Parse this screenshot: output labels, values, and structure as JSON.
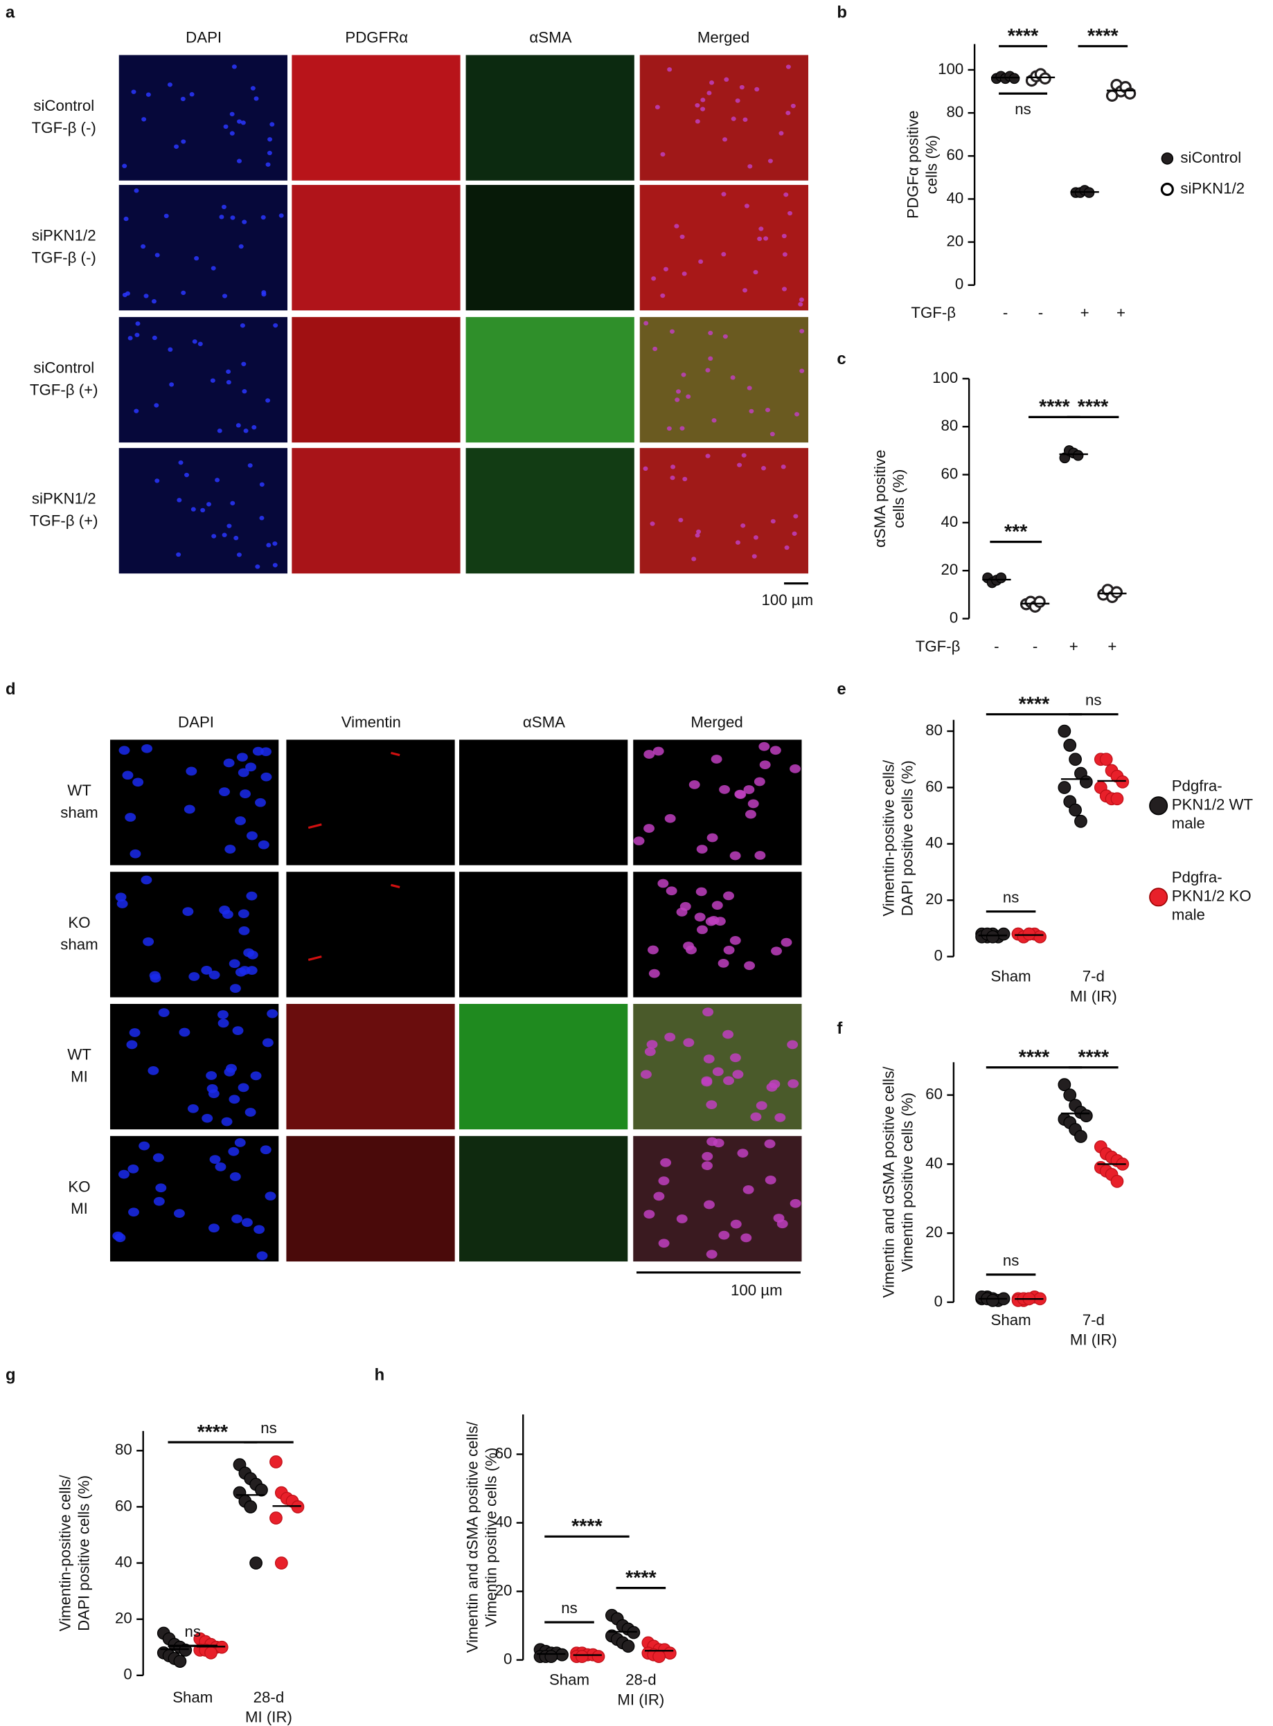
{
  "figure_panels": [
    {
      "letter": "a",
      "columns": [
        "DAPI",
        "PDGFRα",
        "αSMA",
        "Merged"
      ],
      "rows": [
        [
          "siControl",
          "TGF-β (-)"
        ],
        [
          "siPKN1/2",
          "TGF-β (-)"
        ],
        [
          "siControl",
          "TGF-β (+)"
        ],
        [
          "siPKN1/2",
          "TGF-β (+)"
        ]
      ],
      "scale_bar": "100 µm"
    },
    {
      "letter": "d",
      "columns": [
        "DAPI",
        "Vimentin",
        "αSMA",
        "Merged"
      ],
      "rows": [
        [
          "WT",
          "sham"
        ],
        [
          "KO",
          "sham"
        ],
        [
          "WT",
          "MI"
        ],
        [
          "KO",
          "MI"
        ]
      ],
      "scale_bar": "100 µm"
    }
  ],
  "chart_data": [
    {
      "type": "dot",
      "panel": "b",
      "ylabel": [
        "PDGFα positive",
        "cells (%)"
      ],
      "ylim": [
        0,
        112
      ],
      "yticks": [
        0,
        20,
        40,
        60,
        80,
        100
      ],
      "xlabel": "TGF-β",
      "categories": [
        "-",
        "-",
        "+",
        "+"
      ],
      "series": [
        {
          "name": [
            "siControl"
          ],
          "color": "#231f20",
          "hollow": false,
          "values": [
            [
              96,
              97,
              96,
              97,
              96
            ],
            null,
            [
              43,
              43,
              44,
              43
            ],
            null
          ]
        },
        {
          "name": [
            "siPKN1/2"
          ],
          "color": "#231f20",
          "hollow": true,
          "values": [
            null,
            [
              95,
              97,
              98,
              96
            ],
            null,
            [
              88,
              93,
              90,
              92,
              89
            ]
          ]
        }
      ],
      "annotations": [
        {
          "text": "****",
          "from": 0,
          "to": 1,
          "y": 111
        },
        {
          "text": "ns",
          "from": 0,
          "to": 1,
          "y": 89,
          "text_below": true
        },
        {
          "text": "****",
          "from": 2,
          "to": 3,
          "y": 111
        }
      ]
    },
    {
      "type": "dot",
      "panel": "c",
      "ylabel": [
        "αSMA positive",
        "cells (%)"
      ],
      "ylim": [
        0,
        100
      ],
      "yticks": [
        0,
        20,
        40,
        60,
        80,
        100
      ],
      "xlabel": "TGF-β",
      "categories": [
        "-",
        "-",
        "+",
        "+"
      ],
      "series": [
        {
          "name": [
            "siControl"
          ],
          "color": "#231f20",
          "hollow": false,
          "values": [
            [
              17,
              15,
              16,
              17
            ],
            null,
            [
              67,
              70,
              69,
              68
            ],
            null
          ]
        },
        {
          "name": [
            "siPKN1/2"
          ],
          "color": "#231f20",
          "hollow": true,
          "values": [
            null,
            [
              6,
              7,
              5,
              7
            ],
            null,
            [
              10,
              12,
              9,
              11
            ]
          ]
        }
      ],
      "annotations": [
        {
          "text": "***",
          "from": 0,
          "to": 1,
          "y": 32
        },
        {
          "text": "****",
          "from": 1,
          "to": 2,
          "y": 84
        },
        {
          "text": "****",
          "from": 2,
          "to": 3,
          "y": 84
        }
      ]
    },
    {
      "type": "dot",
      "panel": "e",
      "ylabel": [
        "Vimentin-positive cells/",
        "DAPI positive cells (%)"
      ],
      "ylim": [
        0,
        84
      ],
      "yticks": [
        0,
        20,
        40,
        60,
        80
      ],
      "categories": [
        [
          "Sham"
        ],
        [
          "7-d",
          "MI (IR)"
        ]
      ],
      "series": [
        {
          "name": [
            "Pdgfra-",
            "PKN1/2 WT",
            "male"
          ],
          "color": "#231f20",
          "hollow": false,
          "values": [
            [
              8,
              7,
              8,
              7,
              8,
              7,
              8,
              7
            ],
            [
              80,
              75,
              70,
              65,
              62,
              60,
              55,
              52,
              48
            ]
          ]
        },
        {
          "name": [
            "Pdgfra-",
            "PKN1/2 KO",
            "male"
          ],
          "color": "#e8202a",
          "hollow": false,
          "values": [
            [
              8,
              7,
              8,
              8,
              7,
              8,
              7,
              8
            ],
            [
              70,
              70,
              66,
              64,
              62,
              60,
              57,
              56,
              56
            ]
          ]
        }
      ],
      "annotations": [
        {
          "text": "****",
          "from": 0,
          "to": 2,
          "y": 86
        },
        {
          "text": "ns",
          "from": 2,
          "to": 3,
          "y": 86
        },
        {
          "text": "ns",
          "from": 0,
          "to": 1,
          "y": 16
        }
      ]
    },
    {
      "type": "dot",
      "panel": "f",
      "ylabel": [
        "Vimentin and αSMA positive cells/",
        "Vimentin positive cells (%)"
      ],
      "ylim": [
        0,
        69.5
      ],
      "yticks": [
        0,
        20,
        40,
        60
      ],
      "categories": [
        [
          "Sham"
        ],
        [
          "7-d",
          "MI (IR)"
        ]
      ],
      "series": [
        {
          "name": null,
          "color": "#231f20",
          "hollow": false,
          "values": [
            [
              1,
              1.5,
              1,
              0.5,
              1,
              1.5,
              1,
              0.5
            ],
            [
              63,
              60,
              57,
              55,
              54,
              53,
              52,
              50,
              48
            ]
          ]
        },
        {
          "name": null,
          "color": "#e8202a",
          "hollow": false,
          "values": [
            [
              1,
              0.5,
              1,
              1.5,
              1,
              0.5,
              1,
              1
            ],
            [
              45,
              43,
              42,
              41,
              40,
              39,
              38,
              37,
              35
            ]
          ]
        }
      ],
      "annotations": [
        {
          "text": "****",
          "from": 0,
          "to": 2,
          "y": 68
        },
        {
          "text": "****",
          "from": 2,
          "to": 3,
          "y": 68
        },
        {
          "text": "ns",
          "from": 0,
          "to": 1,
          "y": 8
        }
      ]
    },
    {
      "type": "dot",
      "panel": "g",
      "ylabel": [
        "Vimentin-positive cells/",
        "DAPI positive cells (%)"
      ],
      "ylim": [
        0,
        87
      ],
      "yticks": [
        0,
        20,
        40,
        60,
        80
      ],
      "categories": [
        [
          "Sham"
        ],
        [
          "28-d",
          "MI (IR)"
        ]
      ],
      "series": [
        {
          "name": null,
          "color": "#231f20",
          "hollow": false,
          "values": [
            [
              15,
              13,
              11,
              10,
              9,
              8,
              7,
              6,
              5
            ],
            [
              75,
              72,
              70,
              68,
              66,
              65,
              62,
              60,
              40
            ]
          ]
        },
        {
          "name": null,
          "color": "#e8202a",
          "hollow": false,
          "values": [
            [
              13,
              12,
              11,
              10,
              10,
              9,
              9,
              8
            ],
            [
              76,
              65,
              63,
              62,
              60,
              56,
              40
            ]
          ]
        }
      ],
      "annotations": [
        {
          "text": "****",
          "from": 0,
          "to": 2,
          "y": 83
        },
        {
          "text": "ns",
          "from": 2,
          "to": 3,
          "y": 83
        },
        {
          "text": "ns",
          "from": 0,
          "to": 1,
          "y": 10.5
        }
      ]
    },
    {
      "type": "dot",
      "panel": "h",
      "ylabel": [
        "Vimentin and αSMA positive cells/",
        "Vimentin positive cells (%)"
      ],
      "ylim": [
        0,
        71.6
      ],
      "yticks": [
        0,
        20,
        40,
        60
      ],
      "categories": [
        [
          "Sham"
        ],
        [
          "28-d",
          "MI (IR)"
        ]
      ],
      "series": [
        {
          "name": null,
          "color": "#231f20",
          "hollow": false,
          "values": [
            [
              3,
              2.5,
              2,
              2,
              1.5,
              1,
              1,
              1
            ],
            [
              13,
              12,
              10,
              9,
              8,
              7,
              6,
              5,
              4
            ]
          ]
        },
        {
          "name": null,
          "color": "#e8202a",
          "hollow": false,
          "values": [
            [
              2,
              2,
              1.5,
              1.5,
              1,
              1,
              1
            ],
            [
              5,
              4,
              3,
              3,
              2,
              2,
              1.5,
              1
            ]
          ]
        }
      ],
      "annotations": [
        {
          "text": "****",
          "from": 0,
          "to": 2,
          "y": 36
        },
        {
          "text": "****",
          "from": 2,
          "to": 3,
          "y": 21
        },
        {
          "text": "ns",
          "from": 0,
          "to": 1,
          "y": 11
        }
      ]
    }
  ]
}
